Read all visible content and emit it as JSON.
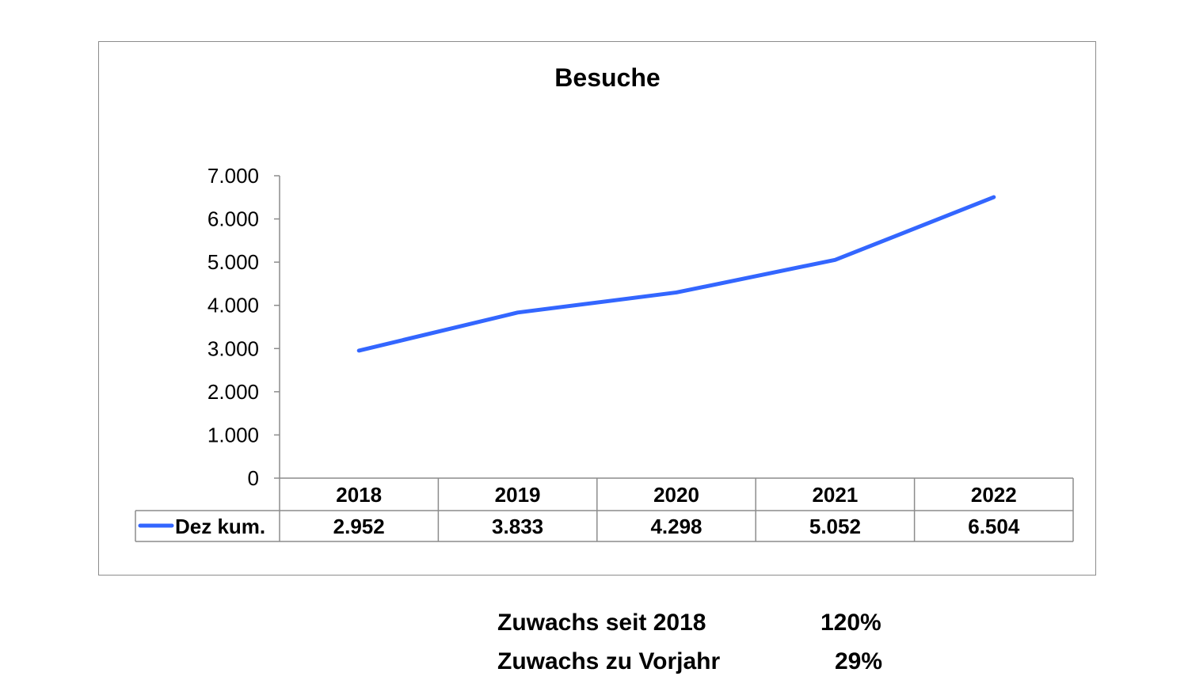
{
  "chart_data": {
    "type": "line",
    "title": "Besuche",
    "categories": [
      "2018",
      "2019",
      "2020",
      "2021",
      "2022"
    ],
    "series": [
      {
        "name": "Dez kum.",
        "values": [
          2952,
          3833,
          4298,
          5052,
          6504
        ],
        "value_labels": [
          "2.952",
          "3.833",
          "4.298",
          "5.052",
          "6.504"
        ],
        "color": "#3366ff"
      }
    ],
    "ylim": [
      0,
      7000
    ],
    "yticks": [
      0,
      1000,
      2000,
      3000,
      4000,
      5000,
      6000,
      7000
    ],
    "ytick_labels": [
      "0",
      "1.000",
      "2.000",
      "3.000",
      "4.000",
      "5.000",
      "6.000",
      "7.000"
    ],
    "xlabel": "",
    "ylabel": "",
    "grid": false,
    "legend": "data-table"
  },
  "stats": [
    {
      "label": "Zuwachs seit 2018",
      "value": "120%"
    },
    {
      "label": "Zuwachs zu Vorjahr",
      "value": "29%"
    }
  ]
}
